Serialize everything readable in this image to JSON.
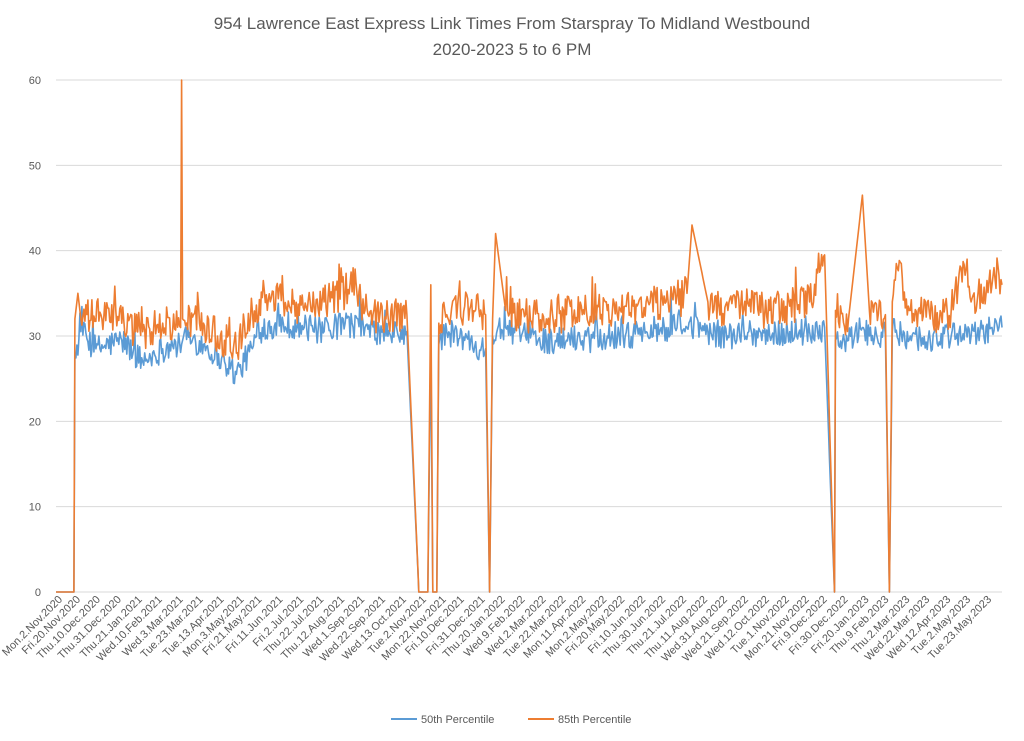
{
  "chart_data": {
    "type": "line",
    "title_lines": [
      "954 Lawrence East Express Link Times From Starspray To Midland Westbound",
      "2020-2023 5 to 6 PM"
    ],
    "xlabel": "",
    "ylabel": "",
    "ylim": [
      0,
      60
    ],
    "yticks": [
      0,
      10,
      20,
      30,
      40,
      50,
      60
    ],
    "grid": "horizontal",
    "legend_position": "bottom",
    "xlim": [
      "2020-10-26",
      "2023-06-02"
    ],
    "x_tick_labels": [
      "Mon.2.Nov.2020",
      "Fri.20.Nov.2020",
      "Thu.10.Dec.2020",
      "Thu.31.Dec.2020",
      "Thu.21.Jan.2021",
      "Wed.10.Feb.2021",
      "Wed.3.Mar.2021",
      "Tue.23.Mar.2021",
      "Tue.13.Apr.2021",
      "Mon.3.May.2021",
      "Fri.21.May.2021",
      "Fri.11.Jun.2021",
      "Fri.2.Jul.2021",
      "Thu.22.Jul.2021",
      "Thu.12.Aug.2021",
      "Wed.1.Sep.2021",
      "Wed.22.Sep.2021",
      "Wed.13.Oct.2021",
      "Tue.2.Nov.2021",
      "Mon.22.Nov.2021",
      "Fri.10.Dec.2021",
      "Fri.31.Dec.2021",
      "Thu.20.Jan.2022",
      "Wed.9.Feb.2022",
      "Wed.2.Mar.2022",
      "Tue.22.Mar.2022",
      "Mon.11.Apr.2022",
      "Mon.2.May.2022",
      "Fri.20.May.2022",
      "Fri.10.Jun.2022",
      "Thu.30.Jun.2022",
      "Thu.21.Jul.2022",
      "Thu.11.Aug.2022",
      "Wed.31.Aug.2022",
      "Wed.21.Sep.2022",
      "Wed.12.Oct.2022",
      "Tue.1.Nov.2022",
      "Mon.21.Nov.2022",
      "Fri.9.Dec.2022",
      "Fri.30.Dec.2022",
      "Fri.20.Jan.2023",
      "Thu.9.Feb.2023",
      "Thu.2.Mar.2023",
      "Wed.22.Mar.2023",
      "Wed.12.Apr.2023",
      "Tue.2.May.2023",
      "Tue.23.May.2023"
    ],
    "series": [
      {
        "name": "50th Percentile",
        "color": "#5B9BD5",
        "points": [
          [
            "2020-10-26",
            0
          ],
          [
            "2020-11-13",
            0
          ],
          [
            "2020-11-14",
            27.5
          ],
          [
            "2020-11-20",
            30.5
          ],
          [
            "2020-12-05",
            28.5
          ],
          [
            "2020-12-31",
            29.5
          ],
          [
            "2021-01-21",
            27
          ],
          [
            "2021-02-10",
            28.5
          ],
          [
            "2021-03-01",
            29
          ],
          [
            "2021-03-03",
            30
          ],
          [
            "2021-03-23",
            29
          ],
          [
            "2021-04-13",
            27
          ],
          [
            "2021-04-25",
            25.5
          ],
          [
            "2021-05-03",
            27
          ],
          [
            "2021-05-21",
            31
          ],
          [
            "2021-06-11",
            31.5
          ],
          [
            "2021-07-02",
            31
          ],
          [
            "2021-07-22",
            30.5
          ],
          [
            "2021-08-12",
            31.5
          ],
          [
            "2021-09-01",
            31
          ],
          [
            "2021-09-22",
            30
          ],
          [
            "2021-10-13",
            30.5
          ],
          [
            "2021-10-25",
            0
          ],
          [
            "2021-10-27",
            0
          ],
          [
            "2021-11-03",
            0
          ],
          [
            "2021-11-06",
            29
          ],
          [
            "2021-11-08",
            0
          ],
          [
            "2021-11-12",
            0
          ],
          [
            "2021-11-14",
            29
          ],
          [
            "2021-11-22",
            30.5
          ],
          [
            "2021-12-10",
            29.5
          ],
          [
            "2021-12-31",
            28.5
          ],
          [
            "2022-01-04",
            0
          ],
          [
            "2022-01-07",
            30
          ],
          [
            "2022-01-20",
            31
          ],
          [
            "2022-02-09",
            30
          ],
          [
            "2022-03-02",
            29.5
          ],
          [
            "2022-03-22",
            29.5
          ],
          [
            "2022-04-11",
            30
          ],
          [
            "2022-05-02",
            30
          ],
          [
            "2022-05-20",
            30
          ],
          [
            "2022-06-10",
            30.5
          ],
          [
            "2022-06-30",
            31
          ],
          [
            "2022-07-21",
            31
          ],
          [
            "2022-08-11",
            30.5
          ],
          [
            "2022-08-31",
            30
          ],
          [
            "2022-09-21",
            30.5
          ],
          [
            "2022-10-12",
            30
          ],
          [
            "2022-11-01",
            30.5
          ],
          [
            "2022-11-21",
            30.5
          ],
          [
            "2022-12-06",
            31
          ],
          [
            "2022-12-16",
            0
          ],
          [
            "2022-12-17",
            29.5
          ],
          [
            "2022-12-30",
            29.5
          ],
          [
            "2023-01-13",
            31
          ],
          [
            "2023-01-20",
            30
          ],
          [
            "2023-02-05",
            30
          ],
          [
            "2023-02-09",
            0
          ],
          [
            "2023-02-12",
            30.5
          ],
          [
            "2023-03-02",
            30
          ],
          [
            "2023-03-22",
            29.5
          ],
          [
            "2023-04-12",
            30
          ],
          [
            "2023-05-02",
            30
          ],
          [
            "2023-05-23",
            31
          ],
          [
            "2023-06-02",
            31
          ]
        ]
      },
      {
        "name": "85th Percentile",
        "color": "#ED7D31",
        "points": [
          [
            "2020-10-26",
            0
          ],
          [
            "2020-11-13",
            0
          ],
          [
            "2020-11-14",
            32
          ],
          [
            "2020-11-17",
            35
          ],
          [
            "2020-11-20",
            32
          ],
          [
            "2020-12-10",
            32.5
          ],
          [
            "2020-12-31",
            31.5
          ],
          [
            "2021-01-21",
            30.5
          ],
          [
            "2021-02-10",
            31.5
          ],
          [
            "2021-02-28",
            31
          ],
          [
            "2021-03-01",
            60
          ],
          [
            "2021-03-02",
            32
          ],
          [
            "2021-03-23",
            31.5
          ],
          [
            "2021-04-13",
            29.5
          ],
          [
            "2021-04-25",
            28
          ],
          [
            "2021-05-03",
            31.5
          ],
          [
            "2021-05-21",
            34.5
          ],
          [
            "2021-06-11",
            34.5
          ],
          [
            "2021-07-02",
            33
          ],
          [
            "2021-07-22",
            34
          ],
          [
            "2021-08-12",
            35
          ],
          [
            "2021-08-18",
            37.5
          ],
          [
            "2021-09-01",
            33
          ],
          [
            "2021-09-22",
            32
          ],
          [
            "2021-10-13",
            32.5
          ],
          [
            "2021-10-25",
            0
          ],
          [
            "2021-10-27",
            0
          ],
          [
            "2021-11-03",
            0
          ],
          [
            "2021-11-06",
            36
          ],
          [
            "2021-11-08",
            0
          ],
          [
            "2021-11-12",
            0
          ],
          [
            "2021-11-14",
            31.5
          ],
          [
            "2021-11-22",
            32.5
          ],
          [
            "2021-12-10",
            33.5
          ],
          [
            "2021-12-31",
            32.5
          ],
          [
            "2022-01-04",
            0
          ],
          [
            "2022-01-07",
            32
          ],
          [
            "2022-01-10",
            42
          ],
          [
            "2022-01-20",
            33
          ],
          [
            "2022-02-09",
            32.5
          ],
          [
            "2022-03-02",
            32
          ],
          [
            "2022-03-22",
            32.5
          ],
          [
            "2022-04-11",
            33
          ],
          [
            "2022-05-02",
            33
          ],
          [
            "2022-05-20",
            33.5
          ],
          [
            "2022-06-10",
            34
          ],
          [
            "2022-06-30",
            34
          ],
          [
            "2022-07-21",
            35
          ],
          [
            "2022-07-26",
            43
          ],
          [
            "2022-08-11",
            34
          ],
          [
            "2022-08-31",
            33
          ],
          [
            "2022-09-21",
            33.5
          ],
          [
            "2022-10-12",
            33
          ],
          [
            "2022-11-01",
            33.5
          ],
          [
            "2022-11-21",
            34
          ],
          [
            "2022-12-06",
            39.5
          ],
          [
            "2022-12-16",
            0
          ],
          [
            "2022-12-17",
            33
          ],
          [
            "2022-12-30",
            32
          ],
          [
            "2023-01-13",
            46.5
          ],
          [
            "2023-01-20",
            33
          ],
          [
            "2023-02-05",
            32.5
          ],
          [
            "2023-02-09",
            0
          ],
          [
            "2023-02-12",
            34
          ],
          [
            "2023-02-16",
            38.5
          ],
          [
            "2023-03-02",
            33
          ],
          [
            "2023-03-22",
            32
          ],
          [
            "2023-04-12",
            33
          ],
          [
            "2023-04-28",
            39
          ],
          [
            "2023-05-02",
            34
          ],
          [
            "2023-05-23",
            36
          ],
          [
            "2023-05-25",
            38
          ],
          [
            "2023-06-02",
            36
          ]
        ]
      }
    ]
  }
}
